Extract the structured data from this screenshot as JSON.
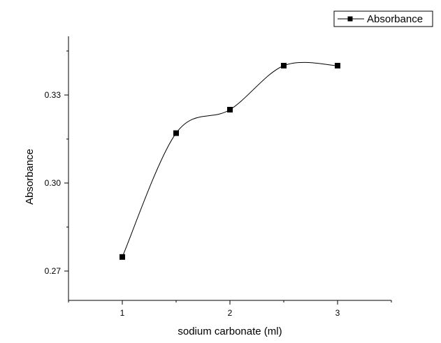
{
  "chart_data": {
    "type": "line",
    "title": "",
    "xlabel": "sodium carbonate (ml)",
    "ylabel": "Absorbance",
    "xlim": [
      0.5,
      3.5
    ],
    "ylim": [
      0.26,
      0.35
    ],
    "xticks": [
      1,
      2,
      3
    ],
    "xtick_labels": [
      "1",
      "2",
      "3"
    ],
    "yticks": [
      0.27,
      0.3,
      0.33
    ],
    "ytick_labels": [
      "0.27",
      "0.30",
      "0.33"
    ],
    "grid": false,
    "legend_position": "top-right",
    "smooth": true,
    "marker": "square",
    "series": [
      {
        "name": "Absorbance",
        "color": "#000000",
        "x": [
          1,
          1.5,
          2,
          2.5,
          3
        ],
        "y": [
          0.2748,
          0.317,
          0.325,
          0.34,
          0.34
        ]
      }
    ]
  }
}
